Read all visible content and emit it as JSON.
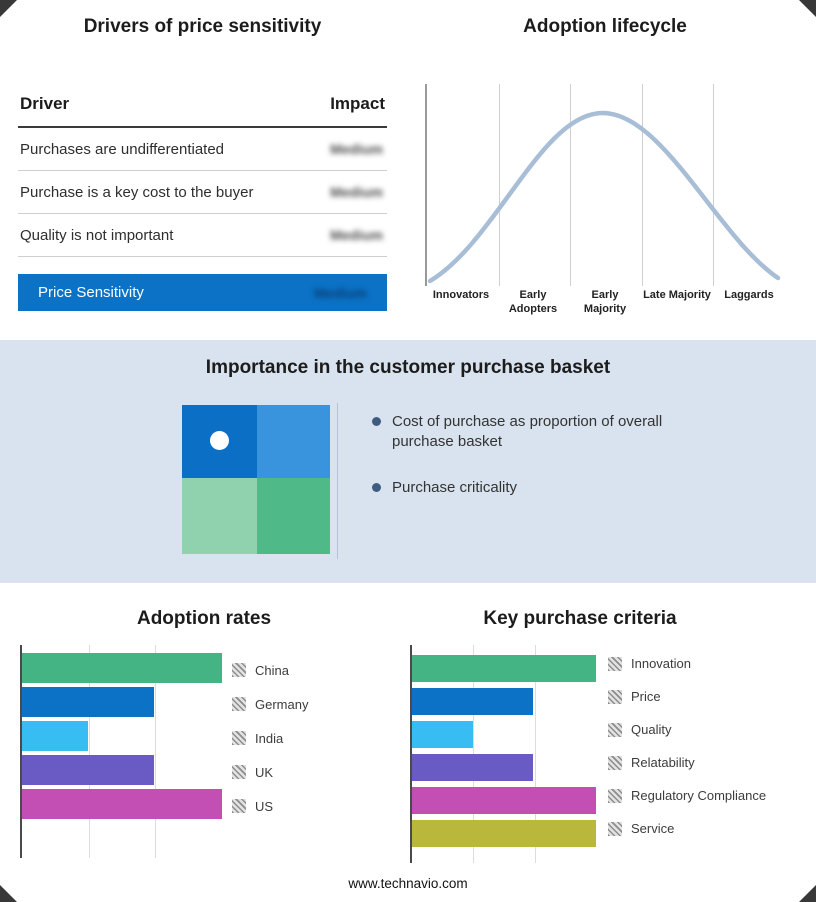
{
  "colors": {
    "band": "#d9e3ef",
    "accent_blue": "#0b72c6",
    "curve": "#a8bdd6"
  },
  "drivers_table": {
    "title": "Drivers of price sensitivity",
    "headers": {
      "driver": "Driver",
      "impact": "Impact"
    },
    "rows": [
      {
        "driver": "Purchases are undifferentiated",
        "impact": "Medium"
      },
      {
        "driver": "Purchase is a key cost to the buyer",
        "impact": "Medium"
      },
      {
        "driver": "Quality is not important",
        "impact": "Medium"
      }
    ],
    "highlight": {
      "label": "Price Sensitivity",
      "impact": "Medium"
    }
  },
  "basket": {
    "title": "Importance in the customer purchase basket",
    "bullets": [
      "Cost of purchase as proportion of overall purchase basket",
      "Purchase criticality"
    ],
    "quadrant": {
      "top_left": "#0b6fc6",
      "top_right": "#3a93dd",
      "bottom_left": "#8fd2ad",
      "bottom_right": "#4fba87"
    }
  },
  "chart_data": [
    {
      "type": "line",
      "title": "Adoption lifecycle",
      "categories": [
        "Innovators",
        "Early Adopters",
        "Early Majority",
        "Late Majority",
        "Laggards"
      ],
      "x": [
        0,
        1,
        2,
        3,
        4
      ],
      "values": [
        5,
        55,
        100,
        55,
        5
      ],
      "ylim": [
        0,
        100
      ],
      "grid": true,
      "line_color": "#a8bdd6",
      "note": "bell-shaped adoption curve, no y-axis tick labels"
    },
    {
      "type": "bar",
      "title": "Adoption rates",
      "orientation": "horizontal",
      "categories": [
        "China",
        "Germany",
        "India",
        "UK",
        "US"
      ],
      "values": [
        100,
        66,
        33,
        66,
        100
      ],
      "xlim": [
        0,
        100
      ],
      "colors": [
        "#45b484",
        "#0b72c6",
        "#38bdf2",
        "#6a5bc4",
        "#c44fb4"
      ],
      "legend_position": "right",
      "grid": true
    },
    {
      "type": "bar",
      "title": "Key purchase criteria",
      "orientation": "horizontal",
      "categories": [
        "Innovation",
        "Price",
        "Quality",
        "Relatability",
        "Regulatory Compliance",
        "Service"
      ],
      "values": [
        100,
        66,
        33,
        66,
        100,
        100
      ],
      "xlim": [
        0,
        100
      ],
      "colors": [
        "#45b484",
        "#0b72c6",
        "#38bdf2",
        "#6a5bc4",
        "#c44fb4",
        "#b9b83d"
      ],
      "legend_position": "right",
      "grid": true
    }
  ],
  "footer": {
    "url": "www.technavio.com"
  }
}
